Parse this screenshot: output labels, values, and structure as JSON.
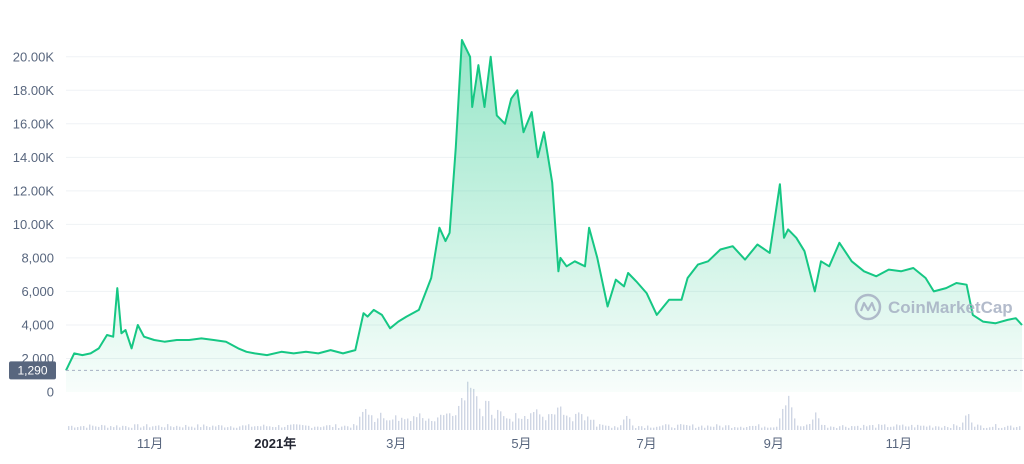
{
  "chart_data": {
    "type": "area",
    "title": "",
    "xlabel": "",
    "ylabel": "",
    "ylim": [
      0,
      21000
    ],
    "y_ticks": [
      {
        "value": 0,
        "label": "0"
      },
      {
        "value": 2000,
        "label": "2,000"
      },
      {
        "value": 4000,
        "label": "4,000"
      },
      {
        "value": 6000,
        "label": "6,000"
      },
      {
        "value": 8000,
        "label": "8,000"
      },
      {
        "value": 10000,
        "label": "10.00K"
      },
      {
        "value": 12000,
        "label": "12.00K"
      },
      {
        "value": 14000,
        "label": "14.00K"
      },
      {
        "value": 16000,
        "label": "16.00K"
      },
      {
        "value": 18000,
        "label": "18.00K"
      },
      {
        "value": 20000,
        "label": "20.00K"
      }
    ],
    "x_ticks": [
      {
        "date": "2020-11-01",
        "label": "11月",
        "strong": false
      },
      {
        "date": "2021-01-01",
        "label": "2021年",
        "strong": true
      },
      {
        "date": "2021-03-01",
        "label": "3月",
        "strong": false
      },
      {
        "date": "2021-05-01",
        "label": "5月",
        "strong": false
      },
      {
        "date": "2021-07-01",
        "label": "7月",
        "strong": false
      },
      {
        "date": "2021-09-01",
        "label": "9月",
        "strong": false
      },
      {
        "date": "2021-11-01",
        "label": "11月",
        "strong": false
      }
    ],
    "x_range": [
      "2020-09-21",
      "2021-12-31"
    ],
    "min_marker": {
      "value": 1290,
      "label": "1,290"
    },
    "grid": true,
    "colors": {
      "line": "#16c784",
      "fill": "#16c784",
      "volume": "#cfd6e4",
      "badge": "#58667e"
    },
    "series": [
      {
        "x": [
          "2020-09-21",
          "2020-09-25",
          "2020-09-29",
          "2020-10-03",
          "2020-10-07",
          "2020-10-11",
          "2020-10-14",
          "2020-10-16",
          "2020-10-18",
          "2020-10-20",
          "2020-10-23",
          "2020-10-26",
          "2020-10-29",
          "2020-11-03",
          "2020-11-08",
          "2020-11-14",
          "2020-11-20",
          "2020-11-26",
          "2020-12-02",
          "2020-12-08",
          "2020-12-14",
          "2020-12-18",
          "2020-12-22",
          "2020-12-28",
          "2021-01-04",
          "2021-01-10",
          "2021-01-16",
          "2021-01-22",
          "2021-01-28",
          "2021-02-03",
          "2021-02-09",
          "2021-02-13",
          "2021-02-15",
          "2021-02-18",
          "2021-02-22",
          "2021-02-26",
          "2021-03-02",
          "2021-03-06",
          "2021-03-12",
          "2021-03-18",
          "2021-03-22",
          "2021-03-25",
          "2021-03-27",
          "2021-03-30",
          "2021-04-02",
          "2021-04-06",
          "2021-04-07",
          "2021-04-10",
          "2021-04-13",
          "2021-04-16",
          "2021-04-19",
          "2021-04-23",
          "2021-04-26",
          "2021-04-29",
          "2021-05-02",
          "2021-05-06",
          "2021-05-09",
          "2021-05-12",
          "2021-05-16",
          "2021-05-19",
          "2021-05-20",
          "2021-05-23",
          "2021-05-27",
          "2021-06-01",
          "2021-06-03",
          "2021-06-07",
          "2021-06-12",
          "2021-06-16",
          "2021-06-20",
          "2021-06-22",
          "2021-06-26",
          "2021-07-01",
          "2021-07-06",
          "2021-07-12",
          "2021-07-18",
          "2021-07-21",
          "2021-07-26",
          "2021-07-31",
          "2021-08-06",
          "2021-08-12",
          "2021-08-18",
          "2021-08-24",
          "2021-08-30",
          "2021-09-04",
          "2021-09-06",
          "2021-09-08",
          "2021-09-12",
          "2021-09-16",
          "2021-09-21",
          "2021-09-24",
          "2021-09-28",
          "2021-10-03",
          "2021-10-09",
          "2021-10-15",
          "2021-10-21",
          "2021-10-27",
          "2021-11-02",
          "2021-11-08",
          "2021-11-14",
          "2021-11-18",
          "2021-11-24",
          "2021-11-29",
          "2021-12-04",
          "2021-12-07",
          "2021-12-12",
          "2021-12-18",
          "2021-12-24",
          "2021-12-28",
          "2021-12-31"
        ],
        "y": [
          1290,
          2300,
          2200,
          2300,
          2600,
          3400,
          3300,
          6200,
          3500,
          3700,
          2600,
          4000,
          3300,
          3100,
          3000,
          3100,
          3100,
          3200,
          3100,
          3000,
          2600,
          2400,
          2300,
          2200,
          2400,
          2300,
          2400,
          2300,
          2500,
          2300,
          2500,
          4700,
          4500,
          4900,
          4600,
          3800,
          4200,
          4500,
          4900,
          6800,
          9800,
          9000,
          9500,
          14600,
          21000,
          20000,
          17000,
          19500,
          17000,
          20000,
          16500,
          16000,
          17500,
          18000,
          15500,
          16700,
          14000,
          15500,
          12500,
          7200,
          8000,
          7500,
          7800,
          7500,
          9800,
          8000,
          5100,
          6700,
          6300,
          7100,
          6600,
          5900,
          4600,
          5500,
          5500,
          6800,
          7600,
          7800,
          8500,
          8700,
          7900,
          8800,
          8300,
          12400,
          9200,
          9700,
          9200,
          8400,
          6000,
          7800,
          7500,
          8900,
          7800,
          7200,
          6900,
          7300,
          7200,
          7400,
          6800,
          6000,
          6200,
          6500,
          6400,
          4600,
          4200,
          4100,
          4300,
          4400,
          4000
        ]
      }
    ],
    "volume_peaks": [
      {
        "x": "2021-02-13",
        "rel": 0.42
      },
      {
        "x": "2021-03-22",
        "rel": 0.3
      },
      {
        "x": "2021-04-02",
        "rel": 0.65
      },
      {
        "x": "2021-04-05",
        "rel": 1.0
      },
      {
        "x": "2021-04-08",
        "rel": 0.8
      },
      {
        "x": "2021-04-14",
        "rel": 0.55
      },
      {
        "x": "2021-04-20",
        "rel": 0.45
      },
      {
        "x": "2021-05-08",
        "rel": 0.42
      },
      {
        "x": "2021-05-19",
        "rel": 0.5
      },
      {
        "x": "2021-06-21",
        "rel": 0.28
      },
      {
        "x": "2021-09-06",
        "rel": 0.5
      },
      {
        "x": "2021-09-08",
        "rel": 0.65
      },
      {
        "x": "2021-09-21",
        "rel": 0.3
      },
      {
        "x": "2021-12-04",
        "rel": 0.3
      }
    ]
  },
  "watermark": {
    "text": "CoinMarketCap",
    "icon": "coinmarketcap-logo-icon"
  }
}
